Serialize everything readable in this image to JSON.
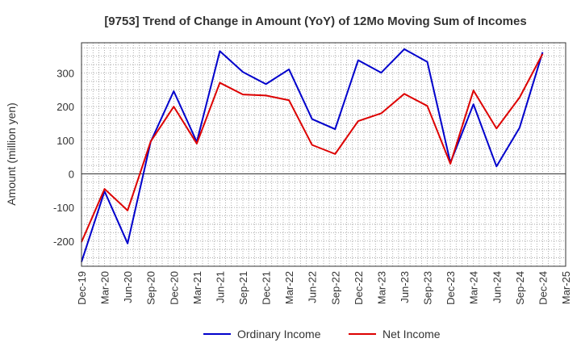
{
  "chart_data": {
    "type": "line",
    "title": "[9753]  Trend of Change in Amount (YoY) of 12Mo Moving Sum of Incomes",
    "xlabel": "",
    "ylabel": "Amount (million yen)",
    "ylim": [
      -275,
      390
    ],
    "yticks": [
      -200,
      -100,
      0,
      100,
      200,
      300
    ],
    "grid": true,
    "legend_position": "bottom",
    "categories": [
      "Dec-19",
      "Mar-20",
      "Jun-20",
      "Sep-20",
      "Dec-20",
      "Mar-21",
      "Jun-21",
      "Sep-21",
      "Dec-21",
      "Mar-22",
      "Jun-22",
      "Sep-22",
      "Dec-22",
      "Mar-23",
      "Jun-23",
      "Sep-23",
      "Dec-23",
      "Mar-24",
      "Jun-24",
      "Sep-24",
      "Dec-24",
      "Mar-25"
    ],
    "series": [
      {
        "name": "Ordinary Income",
        "color": "#0000cc",
        "values": [
          -262,
          -52,
          -207,
          95,
          246,
          95,
          365,
          303,
          267,
          311,
          163,
          133,
          338,
          301,
          371,
          333,
          33,
          207,
          22,
          137,
          362,
          null
        ]
      },
      {
        "name": "Net Income",
        "color": "#dd0000",
        "values": [
          -203,
          -45,
          -109,
          96,
          200,
          90,
          271,
          236,
          233,
          219,
          86,
          59,
          157,
          180,
          238,
          202,
          30,
          248,
          135,
          227,
          357,
          null
        ]
      }
    ]
  }
}
